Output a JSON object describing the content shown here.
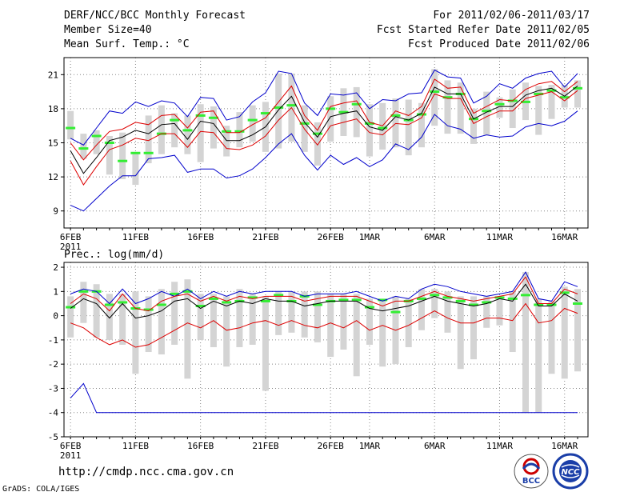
{
  "header": {
    "title": "DERF/NCC/BCC Monthly Forecast",
    "member_size": "Member Size=40",
    "variable": "Mean Surf. Temp.: °C",
    "period": "For 2011/02/06-2011/03/17",
    "fcst_started": "Fcst Started Refer Date 2011/02/05",
    "fcst_produced": "Fcst Produced Date 2011/02/06"
  },
  "footer": {
    "url": "http://cmdp.ncc.cma.gov.cn",
    "credit": "GrADS: COLA/IGES",
    "logo_bcc": "BCC",
    "logo_ncc": "NCC"
  },
  "colors": {
    "envelope": "#0000cc",
    "spread": "#dd0000",
    "mean": "#000000",
    "obs_mean": "#33ee33",
    "bar": "#d4d4d4"
  },
  "chart_data": [
    {
      "type": "line",
      "title": "Mean Surf. Temp.: °C",
      "x_start_label": "2011/02/06",
      "x": [
        1,
        2,
        3,
        4,
        5,
        6,
        7,
        8,
        9,
        10,
        11,
        12,
        13,
        14,
        15,
        16,
        17,
        18,
        19,
        20,
        21,
        22,
        23,
        24,
        25,
        26,
        27,
        28,
        29,
        30,
        31,
        32,
        33,
        34,
        35,
        36,
        37,
        38,
        39,
        40
      ],
      "xticks": [
        {
          "day": 1,
          "label": "6FEB",
          "sublabel": "2011"
        },
        {
          "day": 6,
          "label": "11FEB"
        },
        {
          "day": 11,
          "label": "16FEB"
        },
        {
          "day": 16,
          "label": "21FEB"
        },
        {
          "day": 21,
          "label": "26FEB"
        },
        {
          "day": 24,
          "label": "1MAR"
        },
        {
          "day": 29,
          "label": "6MAR"
        },
        {
          "day": 34,
          "label": "11MAR"
        },
        {
          "day": 39,
          "label": "16MAR"
        }
      ],
      "yticks": [
        9,
        12,
        15,
        18,
        21
      ],
      "ylim": [
        7.5,
        22.5
      ],
      "series": [
        {
          "name": "max",
          "color": "#0000cc",
          "values": [
            15.4,
            14.8,
            16.3,
            17.8,
            17.6,
            18.6,
            18.2,
            18.7,
            18.5,
            17.3,
            19.0,
            18.9,
            17.0,
            17.3,
            18.6,
            19.4,
            21.3,
            21.1,
            18.5,
            17.4,
            19.3,
            19.2,
            19.4,
            18.0,
            18.8,
            18.7,
            19.3,
            19.4,
            21.4,
            20.8,
            20.7,
            18.5,
            19.1,
            20.2,
            19.8,
            20.7,
            21.1,
            21.3,
            19.9,
            21.1
          ]
        },
        {
          "name": "upper",
          "color": "#dd0000",
          "values": [
            15.0,
            13.5,
            14.8,
            16.0,
            16.2,
            16.8,
            16.6,
            17.4,
            17.5,
            16.3,
            17.7,
            17.8,
            15.9,
            15.9,
            16.6,
            17.2,
            18.6,
            20.0,
            17.4,
            16.1,
            18.2,
            18.5,
            18.7,
            16.8,
            16.5,
            17.8,
            17.4,
            18.2,
            20.6,
            19.8,
            19.9,
            17.6,
            18.2,
            18.8,
            18.7,
            19.7,
            20.2,
            20.4,
            19.5,
            20.4
          ]
        },
        {
          "name": "mean",
          "color": "#000000",
          "values": [
            14.3,
            12.3,
            13.7,
            15.2,
            15.5,
            16.1,
            15.8,
            16.6,
            16.7,
            15.3,
            16.9,
            16.7,
            15.2,
            15.2,
            15.7,
            16.4,
            17.9,
            19.1,
            16.8,
            15.5,
            17.3,
            17.6,
            17.8,
            16.4,
            16.1,
            17.3,
            17.0,
            17.6,
            19.9,
            19.3,
            19.3,
            17.1,
            17.7,
            18.2,
            18.2,
            19.2,
            19.6,
            19.8,
            19.1,
            20.0
          ]
        },
        {
          "name": "lower",
          "color": "#dd0000",
          "values": [
            13.4,
            11.3,
            12.9,
            14.4,
            14.8,
            15.4,
            15.2,
            15.8,
            15.8,
            14.6,
            16.0,
            15.9,
            14.5,
            14.4,
            14.8,
            15.6,
            17.0,
            18.1,
            16.2,
            14.8,
            16.5,
            16.8,
            17.1,
            15.9,
            15.7,
            16.7,
            16.6,
            17.2,
            19.3,
            18.9,
            18.9,
            16.7,
            17.3,
            17.8,
            17.8,
            18.9,
            19.2,
            19.5,
            18.7,
            19.6
          ]
        },
        {
          "name": "min",
          "color": "#0000cc",
          "values": [
            9.5,
            9.0,
            10.1,
            11.2,
            12.1,
            12.1,
            13.6,
            13.7,
            13.9,
            12.4,
            12.7,
            12.7,
            11.9,
            12.1,
            12.7,
            13.7,
            14.9,
            15.8,
            13.9,
            12.6,
            13.9,
            13.1,
            13.7,
            12.9,
            13.5,
            14.9,
            14.4,
            15.5,
            17.5,
            16.5,
            16.2,
            15.4,
            15.7,
            15.5,
            15.6,
            16.4,
            16.7,
            16.5,
            16.9,
            17.8
          ]
        }
      ],
      "bars": [
        [
          15.3,
          17.8
        ],
        [
          13.6,
          15.8
        ],
        [
          14.0,
          16.1
        ],
        [
          12.2,
          15.6
        ],
        [
          11.8,
          15.9
        ],
        [
          11.3,
          14.1
        ],
        [
          13.2,
          17.4
        ],
        [
          14.0,
          18.3
        ],
        [
          14.6,
          17.6
        ],
        [
          14.0,
          17.4
        ],
        [
          13.3,
          18.4
        ],
        [
          14.5,
          18.2
        ],
        [
          13.8,
          16.5
        ],
        [
          14.6,
          17.7
        ],
        [
          15.1,
          18.3
        ],
        [
          14.2,
          18.6
        ],
        [
          14.5,
          21.1
        ],
        [
          15.1,
          21.1
        ],
        [
          14.2,
          18.3
        ],
        [
          13.0,
          16.8
        ],
        [
          15.1,
          19.1
        ],
        [
          15.6,
          19.8
        ],
        [
          15.5,
          19.9
        ],
        [
          13.8,
          18.4
        ],
        [
          14.4,
          18.5
        ],
        [
          14.6,
          18.9
        ],
        [
          13.9,
          18.8
        ],
        [
          14.6,
          18.5
        ],
        [
          16.5,
          21.5
        ],
        [
          15.8,
          20.5
        ],
        [
          15.8,
          20.3
        ],
        [
          14.9,
          18.0
        ],
        [
          15.7,
          19.5
        ],
        [
          17.2,
          19.0
        ],
        [
          16.3,
          19.7
        ],
        [
          17.0,
          20.3
        ],
        [
          15.7,
          20.0
        ],
        [
          17.1,
          20.1
        ],
        [
          18.1,
          20.1
        ],
        [
          18.1,
          20.5
        ]
      ],
      "obs_marks": [
        16.3,
        14.5,
        15.6,
        15.0,
        13.4,
        14.1,
        14.1,
        15.8,
        17.0,
        16.1,
        17.4,
        17.2,
        16.0,
        16.0,
        17.0,
        17.6,
        18.1,
        18.3,
        16.7,
        15.8,
        18.0,
        17.7,
        18.4,
        16.7,
        16.3,
        17.4,
        17.0,
        17.5,
        19.5,
        19.0,
        19.3,
        17.1,
        17.8,
        18.4,
        18.7,
        18.6,
        19.3,
        19.6,
        19.0,
        19.8
      ]
    },
    {
      "type": "line",
      "title": "Prec.: log(mm/d)",
      "x": [
        1,
        2,
        3,
        4,
        5,
        6,
        7,
        8,
        9,
        10,
        11,
        12,
        13,
        14,
        15,
        16,
        17,
        18,
        19,
        20,
        21,
        22,
        23,
        24,
        25,
        26,
        27,
        28,
        29,
        30,
        31,
        32,
        33,
        34,
        35,
        36,
        37,
        38,
        39,
        40
      ],
      "xticks": [
        {
          "day": 1,
          "label": "6FEB",
          "sublabel": "2011"
        },
        {
          "day": 6,
          "label": "11FEB"
        },
        {
          "day": 11,
          "label": "16FEB"
        },
        {
          "day": 16,
          "label": "21FEB"
        },
        {
          "day": 21,
          "label": "26FEB"
        },
        {
          "day": 24,
          "label": "1MAR"
        },
        {
          "day": 29,
          "label": "6MAR"
        },
        {
          "day": 34,
          "label": "11MAR"
        },
        {
          "day": 39,
          "label": "16MAR"
        }
      ],
      "yticks": [
        -5,
        -4,
        -3,
        -2,
        -1,
        0,
        1,
        2
      ],
      "ylim": [
        -5,
        2.2
      ],
      "series": [
        {
          "name": "max",
          "color": "#0000cc",
          "values": [
            0.9,
            1.1,
            1.0,
            0.5,
            1.1,
            0.5,
            0.7,
            1.0,
            0.8,
            1.1,
            0.7,
            1.0,
            0.8,
            1.0,
            0.9,
            1.0,
            1.0,
            1.0,
            0.8,
            0.9,
            0.9,
            0.9,
            1.0,
            0.8,
            0.6,
            0.8,
            0.7,
            1.1,
            1.3,
            1.2,
            1.0,
            0.9,
            0.8,
            0.9,
            1.0,
            1.8,
            0.7,
            0.6,
            1.4,
            1.2
          ]
        },
        {
          "name": "upper",
          "color": "#dd0000",
          "values": [
            0.5,
            0.9,
            0.7,
            0.2,
            0.9,
            0.3,
            0.2,
            0.6,
            0.8,
            0.9,
            0.6,
            0.8,
            0.6,
            0.8,
            0.7,
            0.8,
            0.8,
            0.8,
            0.6,
            0.7,
            0.8,
            0.8,
            0.8,
            0.6,
            0.4,
            0.6,
            0.6,
            0.8,
            1.0,
            0.8,
            0.7,
            0.6,
            0.7,
            0.8,
            0.9,
            1.6,
            0.5,
            0.5,
            1.1,
            0.9
          ]
        },
        {
          "name": "mean",
          "color": "#000000",
          "values": [
            0.3,
            0.7,
            0.5,
            -0.1,
            0.5,
            -0.1,
            0.0,
            0.2,
            0.6,
            0.7,
            0.3,
            0.6,
            0.4,
            0.6,
            0.5,
            0.7,
            0.6,
            0.6,
            0.4,
            0.5,
            0.6,
            0.6,
            0.6,
            0.3,
            0.2,
            0.3,
            0.4,
            0.6,
            0.8,
            0.6,
            0.5,
            0.4,
            0.5,
            0.7,
            0.6,
            1.3,
            0.4,
            0.4,
            0.9,
            0.6
          ]
        },
        {
          "name": "lower",
          "color": "#dd0000",
          "values": [
            -0.3,
            -0.5,
            -0.9,
            -1.2,
            -1.0,
            -1.3,
            -1.2,
            -0.9,
            -0.6,
            -0.3,
            -0.5,
            -0.2,
            -0.6,
            -0.5,
            -0.3,
            -0.2,
            -0.4,
            -0.2,
            -0.4,
            -0.5,
            -0.3,
            -0.5,
            -0.2,
            -0.6,
            -0.4,
            -0.6,
            -0.4,
            -0.1,
            0.2,
            -0.1,
            -0.3,
            -0.3,
            -0.1,
            -0.1,
            -0.2,
            0.5,
            -0.3,
            -0.2,
            0.3,
            0.1
          ]
        },
        {
          "name": "min",
          "color": "#0000cc",
          "values": [
            -3.4,
            -2.8,
            -4.0,
            -4.0,
            -4.0,
            -4.0,
            -4.0,
            -4.0,
            -4.0,
            -4.0,
            -4.0,
            -4.0,
            -4.0,
            -4.0,
            -4.0,
            -4.0,
            -4.0,
            -4.0,
            -4.0,
            -4.0,
            -4.0,
            -4.0,
            -4.0,
            -4.0,
            -4.0,
            -4.0,
            -4.0,
            -4.0,
            -4.0,
            -4.0,
            -4.0,
            -4.0,
            -4.0,
            -4.0,
            -4.0,
            -4.0,
            -4.0,
            -4.0,
            -4.0,
            -4.0
          ]
        }
      ],
      "bars": [
        [
          -0.9,
          0.8
        ],
        [
          -0.3,
          1.4
        ],
        [
          -0.9,
          1.3
        ],
        [
          -1.0,
          0.9
        ],
        [
          -1.2,
          0.9
        ],
        [
          -2.4,
          1.0
        ],
        [
          -1.5,
          0.8
        ],
        [
          -1.6,
          1.1
        ],
        [
          -1.2,
          1.4
        ],
        [
          -2.6,
          1.5
        ],
        [
          -1.0,
          0.9
        ],
        [
          -1.3,
          0.9
        ],
        [
          -2.1,
          0.8
        ],
        [
          -1.3,
          1.1
        ],
        [
          -1.2,
          0.9
        ],
        [
          -3.1,
          0.8
        ],
        [
          -0.8,
          1.0
        ],
        [
          -0.7,
          1.0
        ],
        [
          -0.9,
          1.0
        ],
        [
          -1.1,
          1.0
        ],
        [
          -1.7,
          0.9
        ],
        [
          -1.4,
          0.9
        ],
        [
          -2.5,
          0.9
        ],
        [
          -1.2,
          0.7
        ],
        [
          -2.1,
          0.6
        ],
        [
          -2.0,
          0.8
        ],
        [
          -1.3,
          0.7
        ],
        [
          -0.6,
          1.1
        ],
        [
          -0.1,
          1.1
        ],
        [
          -0.7,
          1.0
        ],
        [
          -2.2,
          0.8
        ],
        [
          -1.8,
          0.8
        ],
        [
          -0.5,
          0.8
        ],
        [
          -0.4,
          0.8
        ],
        [
          -1.5,
          1.0
        ],
        [
          -4.0,
          1.8
        ],
        [
          -4.0,
          0.7
        ],
        [
          -2.4,
          0.6
        ],
        [
          -2.6,
          1.2
        ],
        [
          -2.3,
          1.1
        ]
      ],
      "obs_marks": [
        0.35,
        1.0,
        1.0,
        0.45,
        0.55,
        0.3,
        0.25,
        0.45,
        0.9,
        1.0,
        0.4,
        0.7,
        0.55,
        0.6,
        0.75,
        0.6,
        0.85,
        0.6,
        0.8,
        0.45,
        0.6,
        0.65,
        0.65,
        0.35,
        0.65,
        0.15,
        0.6,
        0.7,
        0.85,
        0.75,
        0.6,
        0.45,
        0.55,
        0.75,
        0.7,
        0.85,
        0.45,
        0.45,
        0.95,
        0.5
      ]
    }
  ]
}
